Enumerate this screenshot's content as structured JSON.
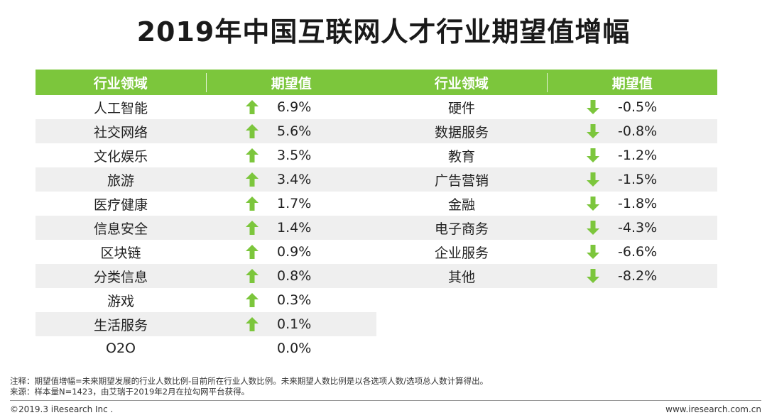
{
  "title": "2019年中国互联网人才行业期望值增幅",
  "colors": {
    "header_bg": "#7cc63c",
    "arrow": "#7cc63c",
    "alt_row": "#efefef"
  },
  "left_table": {
    "headers": [
      "行业领域",
      "期望值"
    ],
    "rows": [
      {
        "industry": "人工智能",
        "value": "6.9%",
        "trend": "up"
      },
      {
        "industry": "社交网络",
        "value": "5.6%",
        "trend": "up"
      },
      {
        "industry": "文化娱乐",
        "value": "3.5%",
        "trend": "up"
      },
      {
        "industry": "旅游",
        "value": "3.4%",
        "trend": "up"
      },
      {
        "industry": "医疗健康",
        "value": "1.7%",
        "trend": "up"
      },
      {
        "industry": "信息安全",
        "value": "1.4%",
        "trend": "up"
      },
      {
        "industry": "区块链",
        "value": "0.9%",
        "trend": "up"
      },
      {
        "industry": "分类信息",
        "value": "0.8%",
        "trend": "up"
      },
      {
        "industry": "游戏",
        "value": "0.3%",
        "trend": "up"
      },
      {
        "industry": "生活服务",
        "value": "0.1%",
        "trend": "up"
      },
      {
        "industry": "O2O",
        "value": "0.0%",
        "trend": "none"
      }
    ]
  },
  "right_table": {
    "headers": [
      "行业领域",
      "期望值"
    ],
    "rows": [
      {
        "industry": "硬件",
        "value": "-0.5%",
        "trend": "down"
      },
      {
        "industry": "数据服务",
        "value": "-0.8%",
        "trend": "down"
      },
      {
        "industry": "教育",
        "value": "-1.2%",
        "trend": "down"
      },
      {
        "industry": "广告营销",
        "value": "-1.5%",
        "trend": "down"
      },
      {
        "industry": "金融",
        "value": "-1.8%",
        "trend": "down"
      },
      {
        "industry": "电子商务",
        "value": "-4.3%",
        "trend": "down"
      },
      {
        "industry": "企业服务",
        "value": "-6.6%",
        "trend": "down"
      },
      {
        "industry": "其他",
        "value": "-8.2%",
        "trend": "down"
      }
    ]
  },
  "notes": {
    "note": "注释：期望值增幅=未来期望发展的行业人数比例-目前所在行业人数比例。未来期望人数比例是以各选项人数/选项总人数计算得出。",
    "source": "来源：样本量N=1423，由艾瑞于2019年2月在拉勾网平台获得。"
  },
  "footer": {
    "copyright": "©2019.3 iResearch Inc .",
    "website": "www.iresearch.com.cn"
  }
}
